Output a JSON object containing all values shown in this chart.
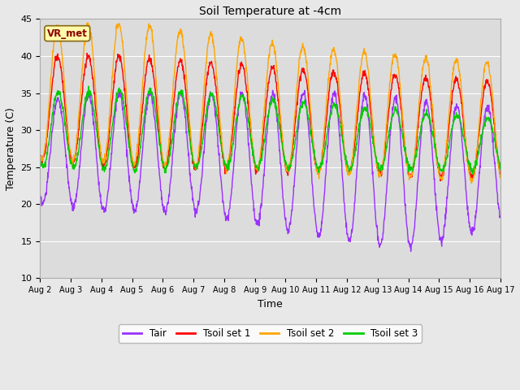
{
  "title": "Soil Temperature at -4cm",
  "xlabel": "Time",
  "ylabel": "Temperature (C)",
  "ylim": [
    10,
    45
  ],
  "annotation": "VR_met",
  "colors": {
    "Tair": "#9B30FF",
    "Tsoil_set1": "#FF0000",
    "Tsoil_set2": "#FFA500",
    "Tsoil_set3": "#00CC00"
  },
  "legend_labels": [
    "Tair",
    "Tsoil set 1",
    "Tsoil set 2",
    "Tsoil set 3"
  ],
  "fig_bg_color": "#E8E8E8",
  "plot_bg_color": "#DCDCDC",
  "tick_dates": [
    "Aug 2",
    "Aug 3",
    "Aug 4",
    "Aug 5",
    "Aug 6",
    "Aug 7",
    "Aug 8",
    "Aug 9",
    "Aug 10",
    "Aug 11",
    "Aug 12",
    "Aug 13",
    "Aug 14",
    "Aug 15",
    "Aug 16",
    "Aug 17"
  ],
  "tick_y": [
    10,
    15,
    20,
    25,
    30,
    35,
    40,
    45
  ],
  "num_days": 15,
  "samples_per_day": 96
}
